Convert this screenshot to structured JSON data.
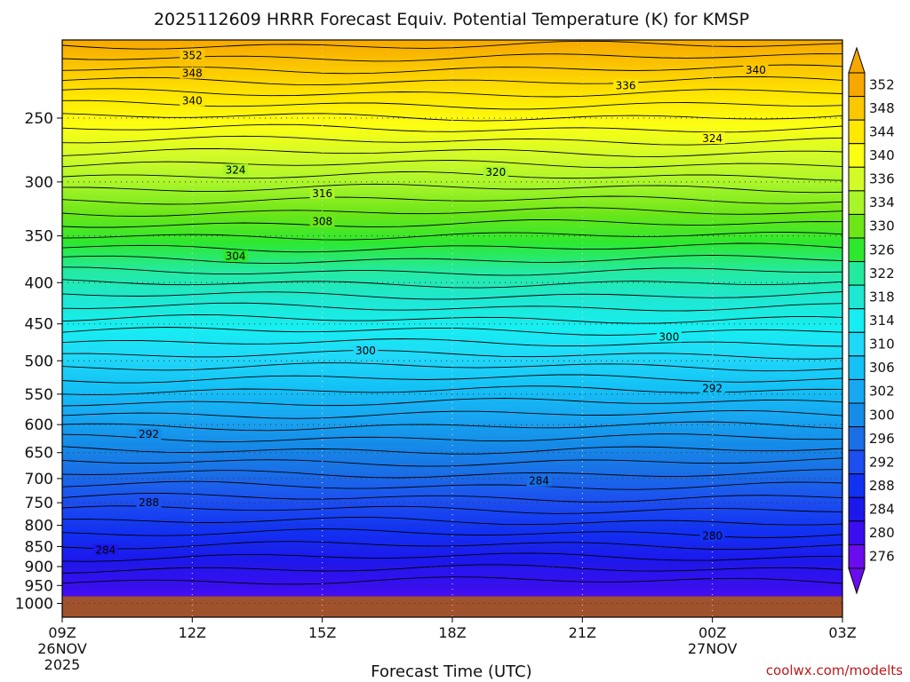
{
  "chart_data": {
    "type": "heatmap",
    "title": "2025112609 HRRR Forecast Equiv. Potential Temperature (K) for KMSP",
    "xlabel": "Forecast Time (UTC)",
    "ylabel": "",
    "credit": "coolwx.com/modelts",
    "x_ticks": [
      {
        "hour": 0,
        "label": "09Z",
        "sub1": "26NOV",
        "sub2": "2025"
      },
      {
        "hour": 3,
        "label": "12Z",
        "sub1": "",
        "sub2": ""
      },
      {
        "hour": 6,
        "label": "15Z",
        "sub1": "",
        "sub2": ""
      },
      {
        "hour": 9,
        "label": "18Z",
        "sub1": "",
        "sub2": ""
      },
      {
        "hour": 12,
        "label": "21Z",
        "sub1": "",
        "sub2": ""
      },
      {
        "hour": 15,
        "label": "00Z",
        "sub1": "27NOV",
        "sub2": ""
      },
      {
        "hour": 18,
        "label": "03Z",
        "sub1": "",
        "sub2": ""
      }
    ],
    "xlim_hours": [
      0,
      18
    ],
    "y_ticks": [
      "250",
      "300",
      "350",
      "400",
      "450",
      "500",
      "550",
      "600",
      "650",
      "700",
      "750",
      "800",
      "850",
      "900",
      "950",
      "1000"
    ],
    "ylim_hPa": [
      200,
      1040
    ],
    "terrain_top_hPa": 980,
    "colorbar": {
      "labels": [
        352,
        348,
        344,
        340,
        336,
        334,
        330,
        326,
        322,
        318,
        314,
        310,
        306,
        302,
        300,
        296,
        292,
        288,
        284,
        280,
        276
      ],
      "colors": [
        "#f7a800",
        "#fbc800",
        "#fee800",
        "#fbff14",
        "#d2fb28",
        "#a8f52a",
        "#6de618",
        "#2ee82e",
        "#24eaa0",
        "#1ee8d2",
        "#16eef2",
        "#20d8f8",
        "#14c2f6",
        "#18a8f2",
        "#158ce8",
        "#1a6ee6",
        "#1c4ef0",
        "#1232f2",
        "#1c18ec",
        "#3a0ef0",
        "#6a0cee"
      ],
      "terrain_color": "#a0522d"
    },
    "contour_labels": [
      {
        "value": "352",
        "hour": 3.0,
        "hPa": 209
      },
      {
        "value": "348",
        "hour": 3.0,
        "hPa": 220
      },
      {
        "value": "340",
        "hour": 3.0,
        "hPa": 238
      },
      {
        "value": "340",
        "hour": 16.0,
        "hPa": 218
      },
      {
        "value": "336",
        "hour": 13.0,
        "hPa": 228
      },
      {
        "value": "324",
        "hour": 15.0,
        "hPa": 265
      },
      {
        "value": "324",
        "hour": 4.0,
        "hPa": 290
      },
      {
        "value": "320",
        "hour": 10.0,
        "hPa": 292
      },
      {
        "value": "316",
        "hour": 6.0,
        "hPa": 310
      },
      {
        "value": "308",
        "hour": 6.0,
        "hPa": 336
      },
      {
        "value": "304",
        "hour": 4.0,
        "hPa": 371
      },
      {
        "value": "300",
        "hour": 7.0,
        "hPa": 486
      },
      {
        "value": "300",
        "hour": 14.0,
        "hPa": 467
      },
      {
        "value": "292",
        "hour": 15.0,
        "hPa": 541
      },
      {
        "value": "292",
        "hour": 2.0,
        "hPa": 617
      },
      {
        "value": "288",
        "hour": 2.0,
        "hPa": 750
      },
      {
        "value": "284",
        "hour": 11.0,
        "hPa": 705
      },
      {
        "value": "284",
        "hour": 1.0,
        "hPa": 859
      },
      {
        "value": "280",
        "hour": 15.0,
        "hPa": 825
      }
    ],
    "grid": true
  }
}
